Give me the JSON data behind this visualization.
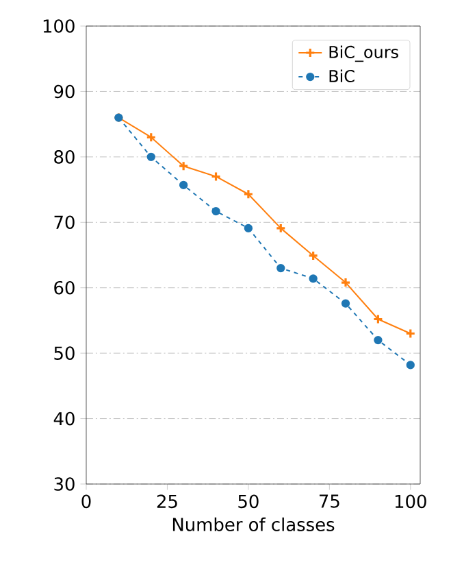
{
  "chart_data": {
    "type": "line",
    "xlabel": "Number of classes",
    "x": [
      10,
      20,
      30,
      40,
      50,
      60,
      70,
      80,
      90,
      100
    ],
    "series": [
      {
        "name": "BiC_ours",
        "color": "#ff7f0e",
        "marker": "cross",
        "line_style": "solid",
        "values": [
          86,
          83,
          78.6,
          77,
          74.3,
          69.1,
          64.9,
          60.8,
          55.2,
          53
        ]
      },
      {
        "name": "BiC",
        "color": "#1f77b4",
        "marker": "circle",
        "line_style": "dashed",
        "values": [
          86,
          80,
          75.7,
          71.7,
          69.1,
          63,
          61.4,
          57.6,
          52,
          48.2
        ]
      }
    ],
    "xlim": [
      0,
      103
    ],
    "ylim": [
      30,
      100
    ],
    "xticks": [
      0,
      25,
      50,
      75,
      100
    ],
    "yticks": [
      30,
      40,
      50,
      60,
      70,
      80,
      90,
      100
    ],
    "grid": "y",
    "legend": "top right"
  }
}
